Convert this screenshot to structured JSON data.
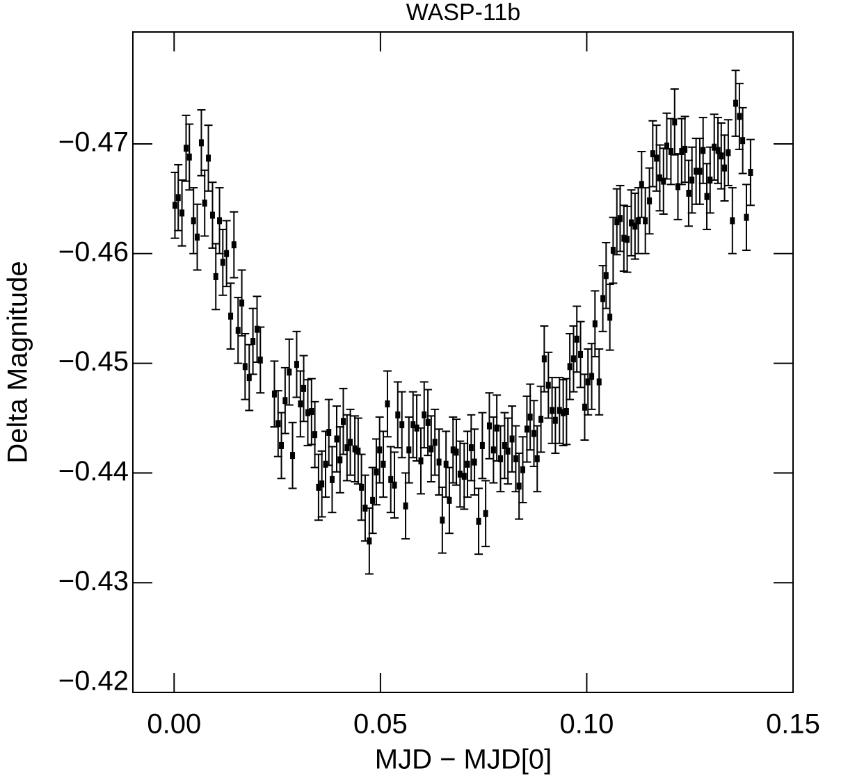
{
  "chart_data": {
    "type": "scatter",
    "title": "WASP-11b",
    "xlabel": "MJD − MJD[0]",
    "ylabel": "Delta Magnitude",
    "color": "#000000",
    "xlim": [
      -0.01,
      0.15
    ],
    "ylim": [
      -0.42,
      -0.4802
    ],
    "xticks": [
      {
        "value": 0,
        "label": "0.00"
      },
      0.05,
      {
        "value": 0.1,
        "label": "0.10"
      },
      0.15
    ],
    "yticks": [
      {
        "value": -0.42,
        "label": "−0.42"
      },
      {
        "value": -0.43,
        "label": "−0.43"
      },
      {
        "value": -0.44,
        "label": "−0.44"
      },
      {
        "value": -0.45,
        "label": "−0.45"
      },
      {
        "value": -0.46,
        "label": "−0.46"
      },
      {
        "value": -0.47,
        "label": "−0.47"
      }
    ],
    "yerr": 0.003,
    "x": [
      0.0002,
      0.001,
      0.0019,
      0.0029,
      0.0037,
      0.0047,
      0.0056,
      0.0066,
      0.0074,
      0.0083,
      0.0093,
      0.0101,
      0.011,
      0.0118,
      0.0127,
      0.0137,
      0.0145,
      0.0155,
      0.0164,
      0.0172,
      0.0182,
      0.0191,
      0.0201,
      0.0209,
      0.0243,
      0.0252,
      0.026,
      0.0269,
      0.0279,
      0.0287,
      0.0297,
      0.0306,
      0.0314,
      0.0324,
      0.0333,
      0.0341,
      0.035,
      0.0358,
      0.0367,
      0.0375,
      0.0383,
      0.0394,
      0.0402,
      0.041,
      0.0419,
      0.0427,
      0.0438,
      0.0446,
      0.0454,
      0.0463,
      0.0473,
      0.0481,
      0.049,
      0.0498,
      0.0507,
      0.0517,
      0.0525,
      0.0534,
      0.0542,
      0.0552,
      0.0561,
      0.0569,
      0.0579,
      0.0588,
      0.0598,
      0.0606,
      0.0615,
      0.0623,
      0.0632,
      0.0642,
      0.065,
      0.0659,
      0.0667,
      0.0676,
      0.0684,
      0.0693,
      0.0703,
      0.0711,
      0.072,
      0.0728,
      0.0738,
      0.0747,
      0.0755,
      0.0764,
      0.0774,
      0.0782,
      0.0791,
      0.0801,
      0.0809,
      0.0819,
      0.0828,
      0.0836,
      0.0845,
      0.0855,
      0.0863,
      0.0872,
      0.088,
      0.0889,
      0.0897,
      0.0907,
      0.0916,
      0.0924,
      0.0934,
      0.0943,
      0.0951,
      0.0959,
      0.0968,
      0.0976,
      0.0985,
      0.0995,
      0.1003,
      0.1012,
      0.102,
      0.103,
      0.1039,
      0.1047,
      0.1056,
      0.1064,
      0.1073,
      0.1081,
      0.109,
      0.1098,
      0.1108,
      0.1117,
      0.1125,
      0.1133,
      0.1142,
      0.1152,
      0.116,
      0.1169,
      0.1177,
      0.1186,
      0.1194,
      0.1204,
      0.1213,
      0.1221,
      0.123,
      0.1238,
      0.1247,
      0.1255,
      0.1265,
      0.1274,
      0.1282,
      0.1291,
      0.1299,
      0.1309,
      0.1318,
      0.1326,
      0.1334,
      0.1343,
      0.1353,
      0.1361,
      0.137,
      0.1378,
      0.1387,
      0.1397
    ],
    "y": [
      -0.4644,
      -0.4651,
      -0.4637,
      -0.4696,
      -0.4688,
      -0.463,
      -0.4615,
      -0.4701,
      -0.4646,
      -0.4687,
      -0.4635,
      -0.4579,
      -0.463,
      -0.4592,
      -0.46,
      -0.4543,
      -0.4608,
      -0.453,
      -0.4555,
      -0.4497,
      -0.4487,
      -0.452,
      -0.4531,
      -0.4503,
      -0.4472,
      -0.4445,
      -0.4425,
      -0.4466,
      -0.4492,
      -0.4416,
      -0.4499,
      -0.4463,
      -0.4477,
      -0.4455,
      -0.4456,
      -0.4435,
      -0.4387,
      -0.439,
      -0.4408,
      -0.4437,
      -0.4394,
      -0.4431,
      -0.4412,
      -0.4447,
      -0.4423,
      -0.4428,
      -0.4422,
      -0.442,
      -0.4387,
      -0.4368,
      -0.4338,
      -0.4375,
      -0.4401,
      -0.4421,
      -0.4408,
      -0.4463,
      -0.4394,
      -0.4389,
      -0.4453,
      -0.4444,
      -0.437,
      -0.4421,
      -0.4444,
      -0.4441,
      -0.4411,
      -0.4453,
      -0.4446,
      -0.4422,
      -0.4428,
      -0.441,
      -0.4357,
      -0.4408,
      -0.4375,
      -0.4421,
      -0.4419,
      -0.4399,
      -0.4397,
      -0.4408,
      -0.4423,
      -0.441,
      -0.4356,
      -0.4425,
      -0.4363,
      -0.4443,
      -0.4421,
      -0.4441,
      -0.4413,
      -0.4425,
      -0.442,
      -0.4431,
      -0.4413,
      -0.4388,
      -0.4403,
      -0.444,
      -0.4451,
      -0.4436,
      -0.4413,
      -0.4449,
      -0.4504,
      -0.448,
      -0.4457,
      -0.4448,
      -0.4457,
      -0.4455,
      -0.4456,
      -0.4497,
      -0.4504,
      -0.4522,
      -0.4508,
      -0.446,
      -0.4483,
      -0.4488,
      -0.4536,
      -0.4483,
      -0.4559,
      -0.458,
      -0.4542,
      -0.4603,
      -0.4629,
      -0.4632,
      -0.4614,
      -0.4613,
      -0.4628,
      -0.4625,
      -0.463,
      -0.4663,
      -0.463,
      -0.4648,
      -0.4691,
      -0.4687,
      -0.4669,
      -0.4666,
      -0.4698,
      -0.4693,
      -0.472,
      -0.4661,
      -0.4693,
      -0.4695,
      -0.4655,
      -0.4667,
      -0.4675,
      -0.4675,
      -0.4694,
      -0.4652,
      -0.4667,
      -0.4697,
      -0.4694,
      -0.4689,
      -0.4678,
      -0.4692,
      -0.463,
      -0.4737,
      -0.4725,
      -0.4703,
      -0.4633,
      -0.4674
    ]
  }
}
